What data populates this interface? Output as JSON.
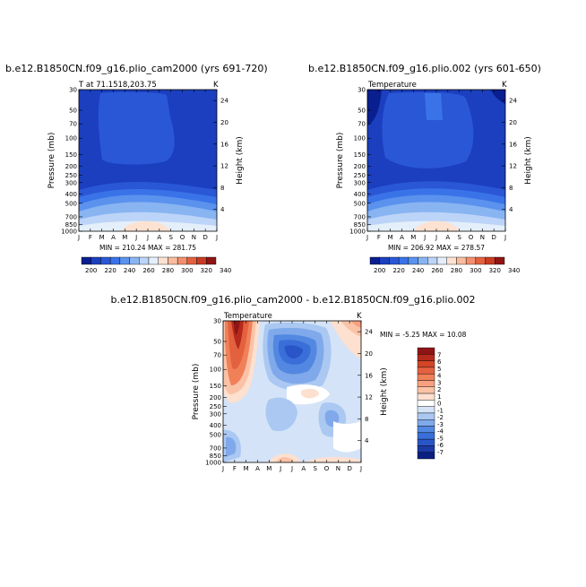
{
  "chart_data": [
    {
      "type": "contour",
      "title": "b.e12.B1850CN.f09_g16.plio_cam2000 (yrs 691-720)",
      "subtitle_left": "T at 71.1518,203.75",
      "subtitle_right": "K",
      "minmax": "MIN = 210.24  MAX = 281.75",
      "xlabel": "",
      "ylabel": "Pressure (mb)",
      "ylabel_right": "Height (km)",
      "months": [
        "J",
        "F",
        "M",
        "A",
        "M",
        "J",
        "J",
        "A",
        "S",
        "O",
        "N",
        "D",
        "J"
      ],
      "pressure_ticks": [
        30,
        50,
        70,
        100,
        150,
        200,
        250,
        300,
        400,
        500,
        700,
        850,
        1000
      ],
      "height_ticks": [
        24,
        20,
        16,
        12,
        8,
        4
      ],
      "colorbar": {
        "labels": [
          "200",
          "220",
          "240",
          "260",
          "280",
          "300",
          "320",
          "340"
        ],
        "colors": [
          "#0a1f8f",
          "#1b3fbf",
          "#2a57d6",
          "#3a73e8",
          "#5a92ee",
          "#89b4f2",
          "#bcd4f7",
          "#e4effb",
          "#fde2d2",
          "#f9bc9e",
          "#f38f6e",
          "#e4613f",
          "#c93b24",
          "#8f1515"
        ]
      }
    },
    {
      "type": "contour",
      "title": "b.e12.B1850CN.f09_g16.plio.002 (yrs 601-650)",
      "subtitle_left": "Temperature",
      "subtitle_right": "K",
      "minmax": "MIN = 206.92  MAX = 278.57",
      "xlabel": "",
      "ylabel": "Pressure (mb)",
      "ylabel_right": "Height (km)",
      "months": [
        "J",
        "F",
        "M",
        "A",
        "M",
        "J",
        "J",
        "A",
        "S",
        "O",
        "N",
        "D",
        "J"
      ],
      "pressure_ticks": [
        30,
        50,
        70,
        100,
        150,
        200,
        250,
        300,
        400,
        500,
        700,
        850,
        1000
      ],
      "height_ticks": [
        24,
        20,
        16,
        12,
        8,
        4
      ],
      "colorbar": {
        "labels": [
          "200",
          "220",
          "240",
          "260",
          "280",
          "300",
          "320",
          "340"
        ],
        "colors": [
          "#0a1f8f",
          "#1b3fbf",
          "#2a57d6",
          "#3a73e8",
          "#5a92ee",
          "#89b4f2",
          "#bcd4f7",
          "#e4effb",
          "#fde2d2",
          "#f9bc9e",
          "#f38f6e",
          "#e4613f",
          "#c93b24",
          "#8f1515"
        ]
      }
    },
    {
      "type": "contour",
      "title": "b.e12.B1850CN.f09_g16.plio_cam2000 - b.e12.B1850CN.f09_g16.plio.002",
      "subtitle_left": "Temperature",
      "subtitle_right": "K",
      "minmax": "MIN = -5.25  MAX = 10.08",
      "xlabel": "",
      "ylabel": "Pressure (mb)",
      "ylabel_right": "Height (km)",
      "months": [
        "J",
        "F",
        "M",
        "A",
        "M",
        "J",
        "J",
        "A",
        "S",
        "O",
        "N",
        "D",
        "J"
      ],
      "pressure_ticks": [
        30,
        50,
        70,
        100,
        150,
        200,
        250,
        300,
        400,
        500,
        700,
        850,
        1000
      ],
      "height_ticks": [
        24,
        20,
        16,
        12,
        8,
        4
      ],
      "colorbar": {
        "labels": [
          "7",
          "6",
          "5",
          "4",
          "3",
          "2",
          "1",
          "0",
          "-1",
          "-2",
          "-3",
          "-4",
          "-5",
          "-6",
          "-7"
        ],
        "colors": [
          "#8f1515",
          "#b52a1c",
          "#d24626",
          "#e4613f",
          "#f08058",
          "#f6a07e",
          "#fac2a6",
          "#fde0cf",
          "#ffffff",
          "#d4e3f7",
          "#aac8f1",
          "#7fa9ea",
          "#5388e2",
          "#3a6ed8",
          "#2a55c8",
          "#1a3aa6",
          "#0b1f80"
        ]
      }
    }
  ]
}
